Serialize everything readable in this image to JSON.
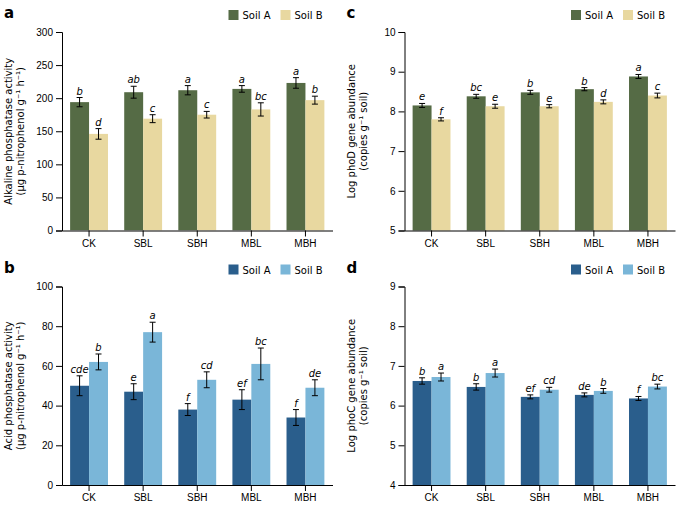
{
  "chart_data": [
    {
      "type": "bar",
      "title": "a",
      "ylabel": "Alkaline phosphatase activity\n(μg p-nitrophenol g⁻¹ h⁻¹)",
      "categories": [
        "CK",
        "SBL",
        "SBH",
        "MBL",
        "MBH"
      ],
      "series": [
        {
          "name": "Soil A",
          "color": "#556b45",
          "values": [
            194,
            209,
            212,
            214,
            223
          ],
          "errors": [
            7,
            9,
            7,
            5,
            8
          ],
          "annotations": [
            "b",
            "ab",
            "a",
            "a",
            "a"
          ]
        },
        {
          "name": "Soil B",
          "color": "#e8d8a0",
          "values": [
            146,
            169,
            175,
            183,
            197
          ],
          "errors": [
            8,
            6,
            5,
            10,
            6
          ],
          "annotations": [
            "d",
            "c",
            "c",
            "bc",
            "b"
          ]
        }
      ],
      "ylim": [
        0,
        300
      ],
      "yticks": [
        0,
        50,
        100,
        150,
        200,
        250,
        300
      ],
      "grid": false,
      "legend": "upper right"
    },
    {
      "type": "bar",
      "title": "b",
      "ylabel": "Acid phosphatase activity\n(μg p-nitrophenol g⁻¹ h⁻¹)",
      "categories": [
        "CK",
        "SBL",
        "SBH",
        "MBL",
        "MBH"
      ],
      "series": [
        {
          "name": "Soil A",
          "color": "#2a5e8c",
          "values": [
            50,
            47,
            38,
            43,
            34
          ],
          "errors": [
            5,
            4,
            3,
            5,
            4
          ],
          "annotations": [
            "cde",
            "e",
            "f",
            "ef",
            "f"
          ]
        },
        {
          "name": "Soil B",
          "color": "#7ab6d8",
          "values": [
            62,
            77,
            53,
            61,
            49
          ],
          "errors": [
            4,
            5,
            4,
            8,
            4
          ],
          "annotations": [
            "b",
            "a",
            "cd",
            "bc",
            "de"
          ]
        }
      ],
      "ylim": [
        0,
        100
      ],
      "yticks": [
        0,
        20,
        40,
        60,
        80,
        100
      ],
      "grid": false,
      "legend": "upper right"
    },
    {
      "type": "bar",
      "title": "c",
      "ylabel": "Log phoD gene abundance\n(copies g⁻¹ soil)",
      "categories": [
        "CK",
        "SBL",
        "SBH",
        "MBL",
        "MBH"
      ],
      "series": [
        {
          "name": "Soil A",
          "color": "#556b45",
          "values": [
            8.15,
            8.38,
            8.48,
            8.56,
            8.88
          ],
          "errors": [
            0.05,
            0.05,
            0.05,
            0.04,
            0.05
          ],
          "annotations": [
            "e",
            "bc",
            "b",
            "b",
            "a"
          ]
        },
        {
          "name": "Soil B",
          "color": "#e8d8a0",
          "values": [
            7.8,
            8.13,
            8.13,
            8.24,
            8.4
          ],
          "errors": [
            0.04,
            0.05,
            0.04,
            0.05,
            0.06
          ],
          "annotations": [
            "f",
            "e",
            "e",
            "d",
            "c"
          ]
        }
      ],
      "ylim": [
        5,
        10
      ],
      "yticks": [
        5,
        6,
        7,
        8,
        9,
        10
      ],
      "grid": false,
      "legend": "upper right"
    },
    {
      "type": "bar",
      "title": "d",
      "ylabel": "Log phoC gene abundance\n(copies g⁻¹ soil)",
      "categories": [
        "CK",
        "SBL",
        "SBH",
        "MBL",
        "MBH"
      ],
      "series": [
        {
          "name": "Soil A",
          "color": "#2a5e8c",
          "values": [
            6.62,
            6.47,
            6.22,
            6.27,
            6.18
          ],
          "errors": [
            0.08,
            0.08,
            0.05,
            0.05,
            0.05
          ],
          "annotations": [
            "b",
            "b",
            "ef",
            "de",
            "f"
          ]
        },
        {
          "name": "Soil B",
          "color": "#7ab6d8",
          "values": [
            6.72,
            6.82,
            6.4,
            6.37,
            6.48
          ],
          "errors": [
            0.1,
            0.1,
            0.06,
            0.06,
            0.06
          ],
          "annotations": [
            "a",
            "a",
            "cd",
            "b",
            "bc"
          ]
        }
      ],
      "ylim": [
        4,
        9
      ],
      "yticks": [
        4,
        5,
        6,
        7,
        8,
        9
      ],
      "grid": false,
      "legend": "upper right"
    }
  ]
}
